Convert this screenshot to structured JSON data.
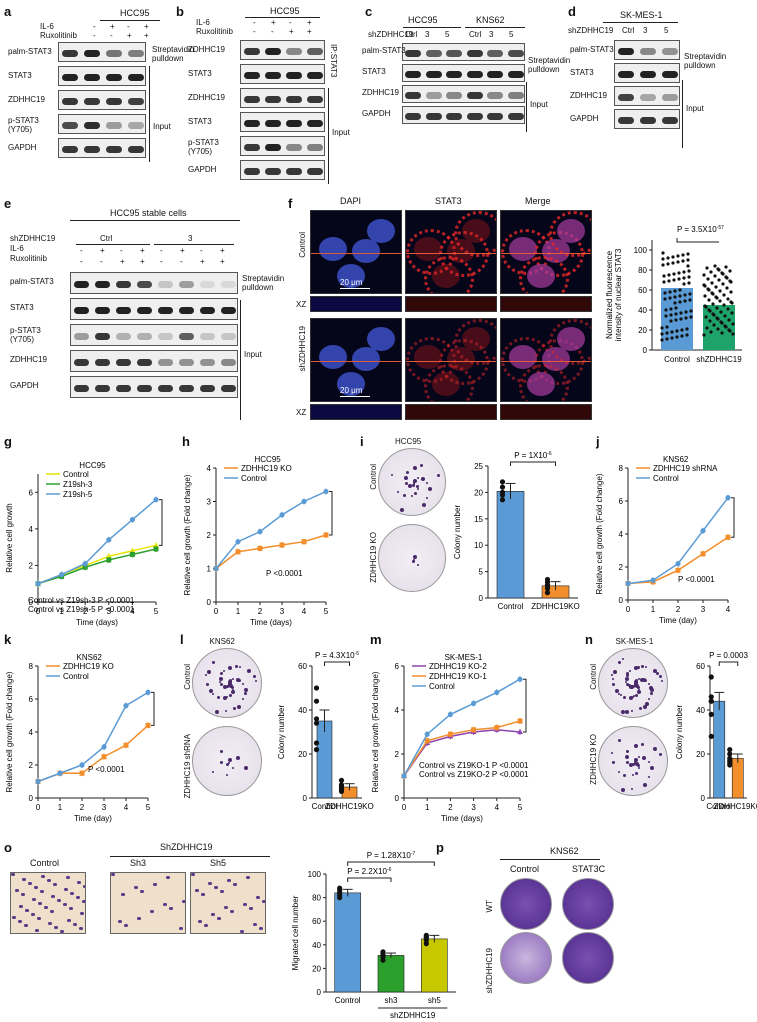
{
  "panels": {
    "a": {
      "label": "a",
      "header": "HCC95",
      "cond": [
        "IL-6",
        "Ruxolitinib"
      ],
      "signs": [
        [
          "-",
          "+",
          "-",
          "+"
        ],
        [
          "-",
          "-",
          "+",
          "+"
        ]
      ],
      "rows": [
        "palm-STAT3",
        "STAT3",
        "ZDHHC19",
        "p-STAT3\n(Y705)",
        "GAPDH"
      ],
      "side1": "Streptavidin\npulldown",
      "side2": "Input"
    },
    "b": {
      "label": "b",
      "header": "HCC95",
      "cond": [
        "IL-6",
        "Ruxolitinib"
      ],
      "signs": [
        [
          "-",
          "+",
          "-",
          "+"
        ],
        [
          "-",
          "-",
          "+",
          "+"
        ]
      ],
      "rows": [
        "ZDHHC19",
        "STAT3",
        "ZDHHC19",
        "STAT3",
        "p-STAT3\n(Y705)",
        "GAPDH"
      ],
      "side1": "IP:STAT3",
      "side2": "Input"
    },
    "c": {
      "label": "c",
      "header1": "HCC95",
      "header2": "KNS62",
      "cond": "shZDHHC19",
      "lanes": [
        "Ctrl",
        "3",
        "5",
        "Ctrl",
        "3",
        "5"
      ],
      "rows": [
        "palm-STAT3",
        "STAT3",
        "ZDHHC19",
        "GAPDH"
      ],
      "side1": "Streptavidin\npulldown",
      "side2": "Input"
    },
    "d": {
      "label": "d",
      "header": "SK-MES-1",
      "cond": "shZDHHC19",
      "lanes": [
        "Ctrl",
        "3",
        "5"
      ],
      "rows": [
        "palm-STAT3",
        "STAT3",
        "ZDHHC19",
        "GAPDH"
      ],
      "side1": "Streptavidin\npulldown",
      "side2": "Input"
    },
    "e": {
      "label": "e",
      "header": "HCC95 stable cells",
      "cond": [
        "shZDHHC19",
        "IL-6",
        "Ruxolitinib"
      ],
      "groups": [
        "Ctrl",
        "3"
      ],
      "signs": [
        [
          "-",
          "+",
          "-",
          "+",
          "-",
          "+",
          "-",
          "+"
        ],
        [
          "-",
          "-",
          "+",
          "+",
          "-",
          "-",
          "+",
          "+"
        ]
      ],
      "rows": [
        "palm-STAT3",
        "STAT3",
        "p-STAT3\n(Y705)",
        "ZDHHC19",
        "GAPDH"
      ],
      "side1": "Streptavidin\npulldown",
      "side2": "Input"
    },
    "f": {
      "label": "f",
      "cols": [
        "DAPI",
        "STAT3",
        "Merge"
      ],
      "rows": [
        "Control",
        "shZDHHC19"
      ],
      "xz": "XZ",
      "scale": "20 μm",
      "stat": "P = 3.5X10",
      "stat_exp": "-57",
      "ylabel": "Normalized fluorescence\nintensity of nuclear STAT3",
      "groups": [
        "Control",
        "shZDHHC19"
      ],
      "colors": [
        "#5b9bd5",
        "#1ea46a"
      ]
    }
  },
  "charts": {
    "g": {
      "label": "g",
      "title": "HCC95",
      "xlabel": "Time (days)",
      "ylabel": "Relative cell growth",
      "x": [
        0,
        1,
        2,
        3,
        4,
        5
      ],
      "ylim": [
        0,
        7
      ],
      "yticks": [
        0,
        2,
        4,
        6
      ],
      "series": [
        {
          "name": "Control",
          "color": "#e6e600",
          "marker": "tri",
          "values": [
            1.0,
            1.5,
            2.0,
            2.5,
            2.8,
            3.1
          ]
        },
        {
          "name": "Z19sh-3",
          "color": "#2ca02c",
          "marker": "sq",
          "values": [
            1.0,
            1.4,
            1.9,
            2.3,
            2.6,
            2.9
          ]
        },
        {
          "name": "Z19sh-5",
          "color": "#5b9bd5",
          "marker": "circ",
          "values": [
            1.0,
            1.5,
            2.1,
            3.4,
            4.5,
            5.6
          ]
        }
      ],
      "notes": [
        "Control vs Z19sh-3 P <0.0001",
        "Control vs Z19sh-5 P <0.0001"
      ]
    },
    "h": {
      "label": "h",
      "title": "HCC95",
      "xlabel": "Time (days)",
      "ylabel": "Relative cell growth (Fold change)",
      "x": [
        0,
        1,
        2,
        3,
        4,
        5
      ],
      "ylim": [
        0,
        4
      ],
      "yticks": [
        0,
        1,
        2,
        3,
        4
      ],
      "series": [
        {
          "name": "ZDHHC19 KO",
          "color": "#f28e2b",
          "marker": "sq",
          "values": [
            1.0,
            1.5,
            1.6,
            1.7,
            1.8,
            2.0
          ]
        },
        {
          "name": "Control",
          "color": "#5b9bd5",
          "marker": "circ",
          "values": [
            1.0,
            1.8,
            2.1,
            2.6,
            3.0,
            3.3
          ]
        }
      ],
      "notes": [
        "P <0.0001"
      ]
    },
    "j": {
      "label": "j",
      "title": "KNS62",
      "xlabel": "Time (day)",
      "ylabel": "Relative cell growth (Fold change)",
      "x": [
        0,
        1,
        2,
        3,
        4
      ],
      "ylim": [
        0,
        8
      ],
      "yticks": [
        0,
        2,
        4,
        6,
        8
      ],
      "series": [
        {
          "name": "ZDHHC19 shRNA",
          "color": "#f28e2b",
          "marker": "sq",
          "values": [
            1.0,
            1.1,
            1.8,
            2.8,
            3.8
          ]
        },
        {
          "name": "Control",
          "color": "#5b9bd5",
          "marker": "circ",
          "values": [
            1.0,
            1.2,
            2.2,
            4.2,
            6.2
          ]
        }
      ],
      "notes": [
        "P <0.0001"
      ]
    },
    "k": {
      "label": "k",
      "title": "KNS62",
      "xlabel": "Time (day)",
      "ylabel": "Relative cell growth (Fold change)",
      "x": [
        0,
        1,
        2,
        3,
        4,
        5
      ],
      "ylim": [
        0,
        8
      ],
      "yticks": [
        0,
        2,
        4,
        6,
        8
      ],
      "series": [
        {
          "name": "ZDHHC19 KO",
          "color": "#f28e2b",
          "marker": "sq",
          "values": [
            1.0,
            1.5,
            1.5,
            2.5,
            3.2,
            4.4
          ]
        },
        {
          "name": "Control",
          "color": "#5b9bd5",
          "marker": "circ",
          "values": [
            1.0,
            1.5,
            2.0,
            3.1,
            5.6,
            6.4
          ]
        }
      ],
      "notes": [
        "P <0.0001"
      ]
    },
    "m": {
      "label": "m",
      "title": "SK-MES-1",
      "xlabel": "Time (days)",
      "ylabel": "Relative cell growth (Fold change)",
      "x": [
        0,
        1,
        2,
        3,
        4,
        5
      ],
      "ylim": [
        0,
        6
      ],
      "yticks": [
        0,
        2,
        4,
        6
      ],
      "series": [
        {
          "name": "ZDHHC19 KO-2",
          "color": "#8e44ad",
          "marker": "tri",
          "values": [
            1.0,
            2.5,
            2.8,
            3.0,
            3.1,
            3.0
          ]
        },
        {
          "name": "ZDHHC19 KO-1",
          "color": "#f28e2b",
          "marker": "sq",
          "values": [
            1.0,
            2.6,
            2.9,
            3.1,
            3.2,
            3.5
          ]
        },
        {
          "name": "Control",
          "color": "#5b9bd5",
          "marker": "circ",
          "values": [
            1.0,
            2.9,
            3.8,
            4.3,
            4.8,
            5.4
          ]
        }
      ],
      "notes": [
        "Control vs Z19KO-1 P <0.0001",
        "Control vs Z19KO-2 P <0.0001"
      ]
    },
    "i": {
      "label": "i",
      "title": "HCC95",
      "ylabel": "Colony number",
      "ylim": [
        0,
        25
      ],
      "yticks": [
        0,
        5,
        10,
        15,
        20,
        25
      ],
      "stat": "P = 1X10",
      "stat_exp": "-6",
      "categories": [
        "Control",
        "ZDHHC19KO"
      ],
      "values": [
        20.2,
        2.3
      ],
      "errors": [
        1.5,
        0.8
      ],
      "colors": [
        "#5b9bd5",
        "#f28e2b"
      ],
      "points": [
        [
          20.0,
          22.0,
          18.6,
          19.5,
          21.0
        ],
        [
          1.0,
          2.5,
          3.5,
          2.0,
          1.8,
          3.0
        ]
      ],
      "dishes": [
        "Control",
        "ZDHHC19 KO"
      ]
    },
    "l": {
      "label": "l",
      "title": "KNS62",
      "ylabel": "Colony number",
      "ylim": [
        0,
        60
      ],
      "yticks": [
        0,
        20,
        40,
        60
      ],
      "stat": "P = 4.3X10",
      "stat_exp": "-5",
      "categories": [
        "Control",
        "ZDHHC19KO"
      ],
      "values": [
        35,
        5
      ],
      "errors": [
        5,
        1.5
      ],
      "colors": [
        "#5b9bd5",
        "#f28e2b"
      ],
      "points": [
        [
          50,
          44,
          36,
          22,
          34,
          25
        ],
        [
          6,
          4,
          3,
          8,
          5,
          4
        ]
      ],
      "dishes": [
        "Control",
        "ZDHHC19 shRNA"
      ]
    },
    "n": {
      "label": "n",
      "title": "SK-MES-1",
      "ylabel": "Colony number",
      "ylim": [
        0,
        60
      ],
      "yticks": [
        0,
        20,
        40,
        60
      ],
      "stat": "P = 0.0003",
      "stat_exp": "",
      "categories": [
        "Control",
        "ZDHHC19KO"
      ],
      "values": [
        44,
        18
      ],
      "errors": [
        4,
        2
      ],
      "colors": [
        "#5b9bd5",
        "#f28e2b"
      ],
      "points": [
        [
          55,
          46,
          44,
          38,
          28,
          44
        ],
        [
          20,
          16,
          15,
          18,
          22,
          17
        ]
      ],
      "dishes": [
        "Control",
        "ZDHHC19 KO"
      ]
    },
    "o": {
      "label": "o",
      "ylabel": "Migrated cell number",
      "ylim": [
        0,
        100
      ],
      "yticks": [
        0,
        20,
        40,
        60,
        80,
        100
      ],
      "stat1": "P = 1.28X10",
      "stat1_exp": "-7",
      "stat2": "P = 2.2X10",
      "stat2_exp": "-6",
      "categories": [
        "Control",
        "sh3",
        "sh5"
      ],
      "group": "shZDHHC19",
      "values": [
        84,
        31,
        45
      ],
      "errors": [
        3,
        2,
        3
      ],
      "colors": [
        "#5b9bd5",
        "#2ca02c",
        "#c8c800"
      ],
      "points": [
        [
          80,
          86,
          84,
          88,
          82
        ],
        [
          27,
          30,
          33,
          32,
          34
        ],
        [
          41,
          44,
          48,
          46,
          47
        ]
      ],
      "images": [
        "Control",
        "Sh3",
        "Sh5"
      ],
      "img_group": "ShZDHHC19"
    },
    "p": {
      "label": "p",
      "header": "KNS62",
      "cols": [
        "Control",
        "STAT3C"
      ],
      "rows": [
        "WT",
        "shZDHHC19"
      ]
    }
  }
}
